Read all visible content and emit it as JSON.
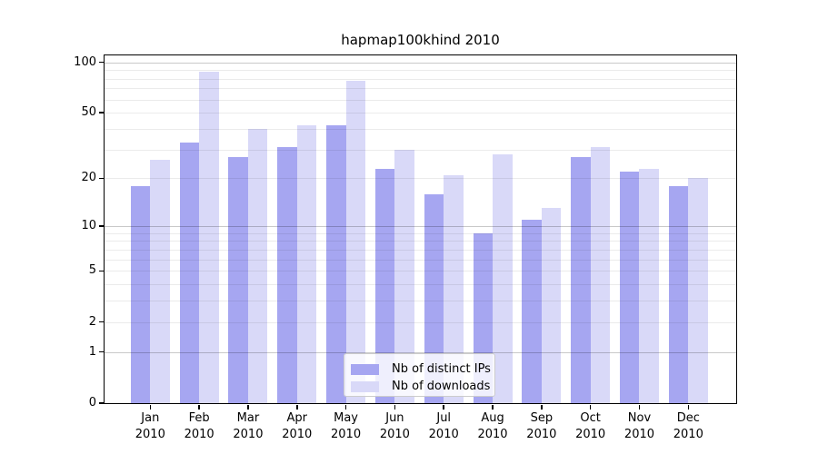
{
  "chart_data": {
    "type": "bar",
    "title": "hapmap100khind 2010",
    "categories": [
      "Jan",
      "Feb",
      "Mar",
      "Apr",
      "May",
      "Jun",
      "Jul",
      "Aug",
      "Sep",
      "Oct",
      "Nov",
      "Dec"
    ],
    "year": "2010",
    "series": [
      {
        "name": "Nb of distinct IPs",
        "color": "#a6a6f1",
        "values": [
          18,
          33,
          27,
          31,
          42,
          23,
          16,
          9,
          11,
          27,
          22,
          18
        ]
      },
      {
        "name": "Nb of downloads",
        "color": "#d9d9f8",
        "values": [
          26,
          88,
          40,
          42,
          78,
          30,
          21,
          28,
          13,
          31,
          23,
          20
        ]
      }
    ],
    "xlabel": "",
    "ylabel": "",
    "y_scale": "log1p",
    "y_ticks": [
      0,
      1,
      2,
      5,
      10,
      20,
      50,
      100
    ],
    "y_major_gridlines": [
      1,
      10,
      100
    ],
    "y_minor_gridlines": [
      2,
      3,
      4,
      5,
      6,
      7,
      8,
      9,
      20,
      30,
      40,
      50,
      60,
      70,
      80,
      90
    ],
    "ylim": [
      0,
      110
    ],
    "grid": "on",
    "legend_position": "lower-center"
  },
  "colors": {
    "background": "#ffffff",
    "bar_distinct_ips": "#a6a6f1",
    "bar_downloads": "#d9d9f8",
    "grid_major": "rgba(0,0,0,0.21)",
    "grid_minor": "rgba(0,0,0,0.08)",
    "axis_spine": "#000000",
    "text": "#000000",
    "legend_border": "#cccccc",
    "legend_background": "rgba(255,255,255,0.82)"
  }
}
